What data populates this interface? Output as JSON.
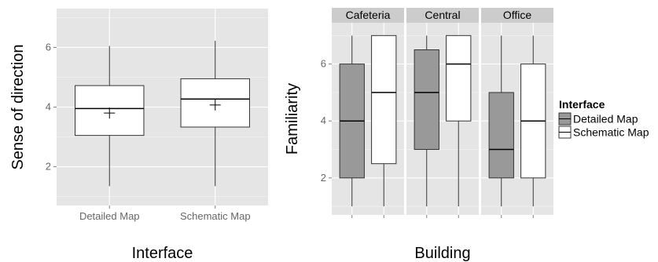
{
  "chart_data": [
    {
      "type": "box",
      "xlabel": "Interface",
      "ylabel": "Sense of direction",
      "ylim": [
        0.7,
        7.3
      ],
      "yticks": [
        2,
        4,
        6
      ],
      "grid": true,
      "categories": [
        "Detailed Map",
        "Schematic Map"
      ],
      "boxes": [
        {
          "category": "Detailed Map",
          "min": 1.35,
          "q1": 3.05,
          "median": 3.95,
          "q3": 4.72,
          "max": 6.05,
          "mean": 3.8
        },
        {
          "category": "Schematic Map",
          "min": 1.35,
          "q1": 3.33,
          "median": 4.27,
          "q3": 4.95,
          "max": 6.22,
          "mean": 4.07
        }
      ],
      "fill": "#ffffff"
    },
    {
      "type": "box",
      "xlabel": "Building",
      "ylabel": "Familiarity",
      "ylim": [
        0.7,
        7.45
      ],
      "yticks": [
        2,
        4,
        6
      ],
      "grid": true,
      "facets": [
        "Cafeteria",
        "Central",
        "Office"
      ],
      "boxes": [
        {
          "facet": "Cafeteria",
          "interface": "Detailed Map",
          "min": 1,
          "q1": 2,
          "median": 4,
          "q3": 6,
          "max": 7
        },
        {
          "facet": "Cafeteria",
          "interface": "Schematic Map",
          "min": 1,
          "q1": 2.5,
          "median": 5,
          "q3": 7,
          "max": 7
        },
        {
          "facet": "Central",
          "interface": "Detailed Map",
          "min": 1,
          "q1": 3,
          "median": 5,
          "q3": 6.5,
          "max": 7
        },
        {
          "facet": "Central",
          "interface": "Schematic Map",
          "min": 1,
          "q1": 4,
          "median": 6,
          "q3": 7,
          "max": 7
        },
        {
          "facet": "Office",
          "interface": "Detailed Map",
          "min": 1,
          "q1": 2,
          "median": 3,
          "q3": 5,
          "max": 7
        },
        {
          "facet": "Office",
          "interface": "Schematic Map",
          "min": 1,
          "q1": 2,
          "median": 4,
          "q3": 6,
          "max": 7
        }
      ],
      "legend": {
        "title": "Interface",
        "position": "right",
        "entries": [
          {
            "label": "Detailed Map",
            "color": "#999999"
          },
          {
            "label": "Schematic Map",
            "color": "#ffffff"
          }
        ]
      }
    }
  ],
  "colors": {
    "panel_bg": "#e5e5e5",
    "grid": "#f5f5f5",
    "strip_bg": "#cccccc",
    "detailed": "#999999",
    "schematic": "#ffffff",
    "line": "#333333"
  }
}
